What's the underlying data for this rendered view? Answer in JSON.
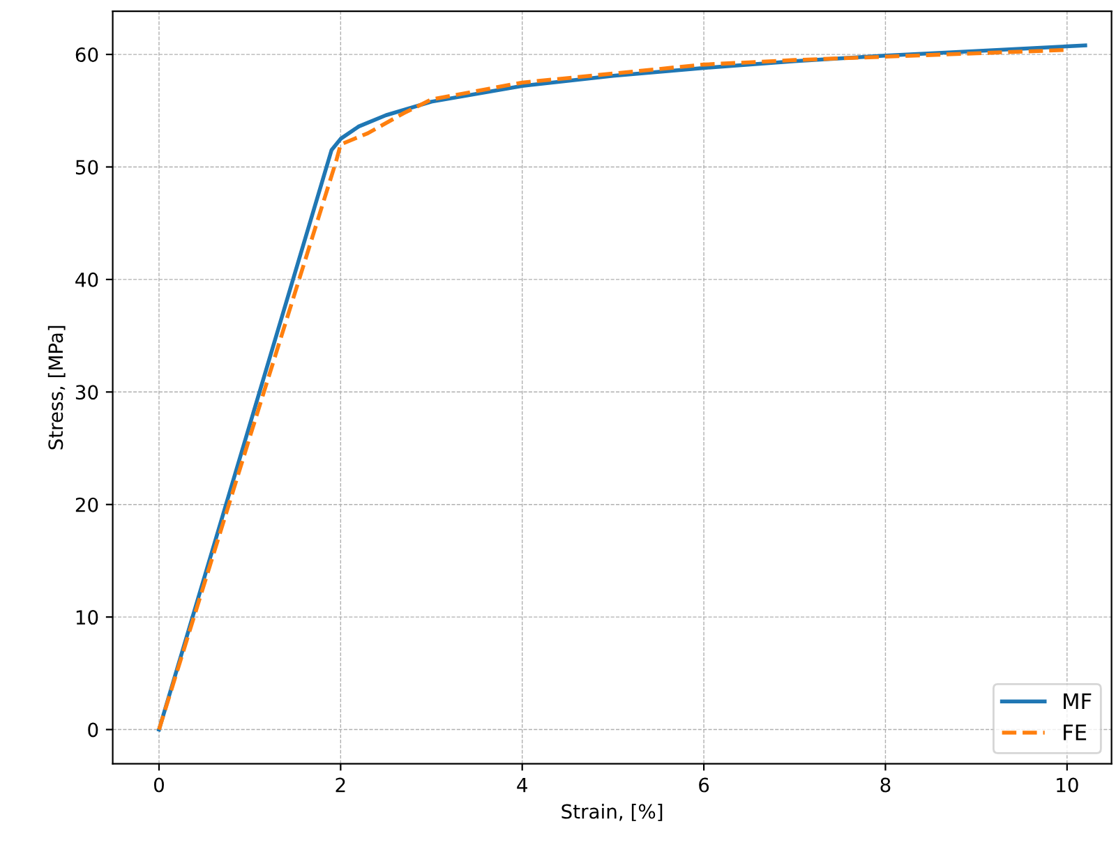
{
  "chart_data": {
    "type": "line",
    "xlabel": "Strain, [%]",
    "ylabel": "Stress, [MPa]",
    "xlim": [
      -0.51,
      10.49
    ],
    "ylim": [
      -3.04,
      63.84
    ],
    "xticks": [
      0,
      2,
      4,
      6,
      8,
      10
    ],
    "yticks": [
      0,
      10,
      20,
      30,
      40,
      50,
      60
    ],
    "grid": true,
    "legend": "bottom right",
    "series": [
      {
        "name": "MF",
        "color": "#1f77b4",
        "line_style": "solid",
        "x": [
          0,
          1.9,
          2.0,
          2.2,
          2.5,
          3,
          4,
          5,
          6,
          7,
          8,
          9,
          10.2
        ],
        "values": [
          0,
          51.5,
          52.5,
          53.6,
          54.6,
          55.8,
          57.2,
          58.1,
          58.8,
          59.4,
          59.9,
          60.3,
          60.8
        ]
      },
      {
        "name": "FE",
        "color": "#ff7f0e",
        "line_style": "dashed",
        "x": [
          0,
          1,
          1.95,
          2.0,
          2.3,
          2.7,
          3,
          4,
          5,
          6,
          7,
          8,
          9,
          10
        ],
        "values": [
          0,
          26,
          50.5,
          52,
          53,
          54.8,
          56,
          57.5,
          58.3,
          59.1,
          59.5,
          59.8,
          60.1,
          60.4
        ]
      }
    ]
  }
}
